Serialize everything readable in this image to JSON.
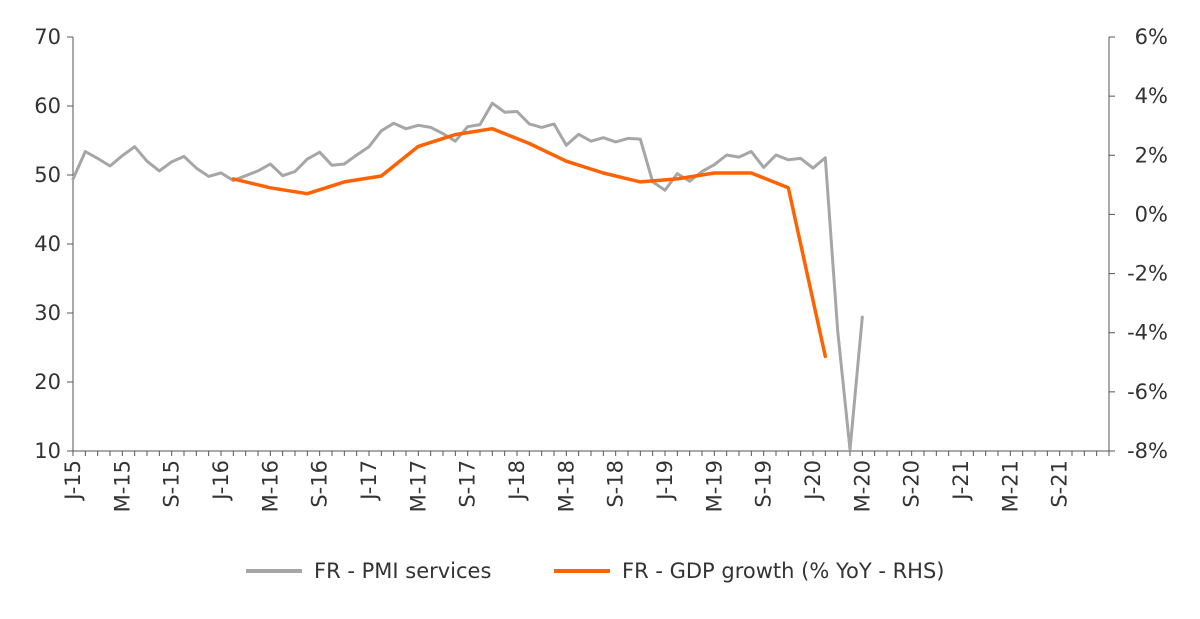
{
  "chart_data": {
    "type": "line",
    "x_tick_labels": [
      "J-15",
      "M-15",
      "S-15",
      "J-16",
      "M-16",
      "S-16",
      "J-17",
      "M-17",
      "S-17",
      "J-18",
      "M-18",
      "S-18",
      "J-19",
      "M-19",
      "S-19",
      "J-20",
      "M-20",
      "S-20",
      "J-21",
      "M-21",
      "S-21"
    ],
    "y_left": {
      "ticks": [
        10,
        20,
        30,
        40,
        50,
        60,
        70
      ],
      "ylim": [
        10,
        70
      ]
    },
    "y_right": {
      "ticks": [
        "-8%",
        "-6%",
        "-4%",
        "-2%",
        "0%",
        "2%",
        "4%",
        "6%"
      ],
      "ylim": [
        -8,
        6
      ]
    },
    "x_range": [
      "2015-01",
      "2021-12"
    ],
    "grid": false,
    "legend_position": "bottom",
    "series": [
      {
        "name": "FR - PMI services",
        "axis": "left",
        "color": "#a6a6a6",
        "points": [
          [
            "2015-01",
            49.4
          ],
          [
            "2015-02",
            53.4
          ],
          [
            "2015-03",
            52.4
          ],
          [
            "2015-04",
            51.3
          ],
          [
            "2015-05",
            52.8
          ],
          [
            "2015-06",
            54.1
          ],
          [
            "2015-07",
            52.0
          ],
          [
            "2015-08",
            50.6
          ],
          [
            "2015-09",
            51.9
          ],
          [
            "2015-10",
            52.7
          ],
          [
            "2015-11",
            51.0
          ],
          [
            "2015-12",
            49.8
          ],
          [
            "2016-01",
            50.3
          ],
          [
            "2016-02",
            49.2
          ],
          [
            "2016-03",
            49.9
          ],
          [
            "2016-04",
            50.6
          ],
          [
            "2016-05",
            51.6
          ],
          [
            "2016-06",
            49.9
          ],
          [
            "2016-07",
            50.5
          ],
          [
            "2016-08",
            52.3
          ],
          [
            "2016-09",
            53.3
          ],
          [
            "2016-10",
            51.4
          ],
          [
            "2016-11",
            51.6
          ],
          [
            "2016-12",
            52.9
          ],
          [
            "2017-01",
            54.1
          ],
          [
            "2017-02",
            56.4
          ],
          [
            "2017-03",
            57.5
          ],
          [
            "2017-04",
            56.7
          ],
          [
            "2017-05",
            57.2
          ],
          [
            "2017-06",
            56.9
          ],
          [
            "2017-07",
            56.0
          ],
          [
            "2017-08",
            54.9
          ],
          [
            "2017-09",
            57.0
          ],
          [
            "2017-10",
            57.3
          ],
          [
            "2017-11",
            60.4
          ],
          [
            "2017-12",
            59.1
          ],
          [
            "2018-01",
            59.2
          ],
          [
            "2018-02",
            57.4
          ],
          [
            "2018-03",
            56.9
          ],
          [
            "2018-04",
            57.4
          ],
          [
            "2018-05",
            54.3
          ],
          [
            "2018-06",
            55.9
          ],
          [
            "2018-07",
            54.9
          ],
          [
            "2018-08",
            55.4
          ],
          [
            "2018-09",
            54.8
          ],
          [
            "2018-10",
            55.3
          ],
          [
            "2018-11",
            55.2
          ],
          [
            "2018-12",
            49.0
          ],
          [
            "2019-01",
            47.8
          ],
          [
            "2019-02",
            50.2
          ],
          [
            "2019-03",
            49.1
          ],
          [
            "2019-04",
            50.5
          ],
          [
            "2019-05",
            51.5
          ],
          [
            "2019-06",
            52.9
          ],
          [
            "2019-07",
            52.6
          ],
          [
            "2019-08",
            53.4
          ],
          [
            "2019-09",
            51.1
          ],
          [
            "2019-10",
            52.9
          ],
          [
            "2019-11",
            52.2
          ],
          [
            "2019-12",
            52.4
          ],
          [
            "2020-01",
            51.0
          ],
          [
            "2020-02",
            52.5
          ],
          [
            "2020-03",
            27.4
          ],
          [
            "2020-04",
            10.2
          ],
          [
            "2020-05",
            29.4
          ]
        ]
      },
      {
        "name": "FR - GDP growth (% YoY - RHS)",
        "axis": "right",
        "color": "#ff6200",
        "points": [
          [
            "2016-02",
            1.2
          ],
          [
            "2016-05",
            0.9
          ],
          [
            "2016-08",
            0.7
          ],
          [
            "2016-11",
            1.1
          ],
          [
            "2017-02",
            1.3
          ],
          [
            "2017-05",
            2.3
          ],
          [
            "2017-08",
            2.7
          ],
          [
            "2017-11",
            2.9
          ],
          [
            "2018-02",
            2.4
          ],
          [
            "2018-05",
            1.8
          ],
          [
            "2018-08",
            1.4
          ],
          [
            "2018-11",
            1.1
          ],
          [
            "2019-02",
            1.2
          ],
          [
            "2019-05",
            1.4
          ],
          [
            "2019-08",
            1.4
          ],
          [
            "2019-11",
            0.9
          ],
          [
            "2020-02",
            -4.8
          ]
        ]
      }
    ]
  }
}
